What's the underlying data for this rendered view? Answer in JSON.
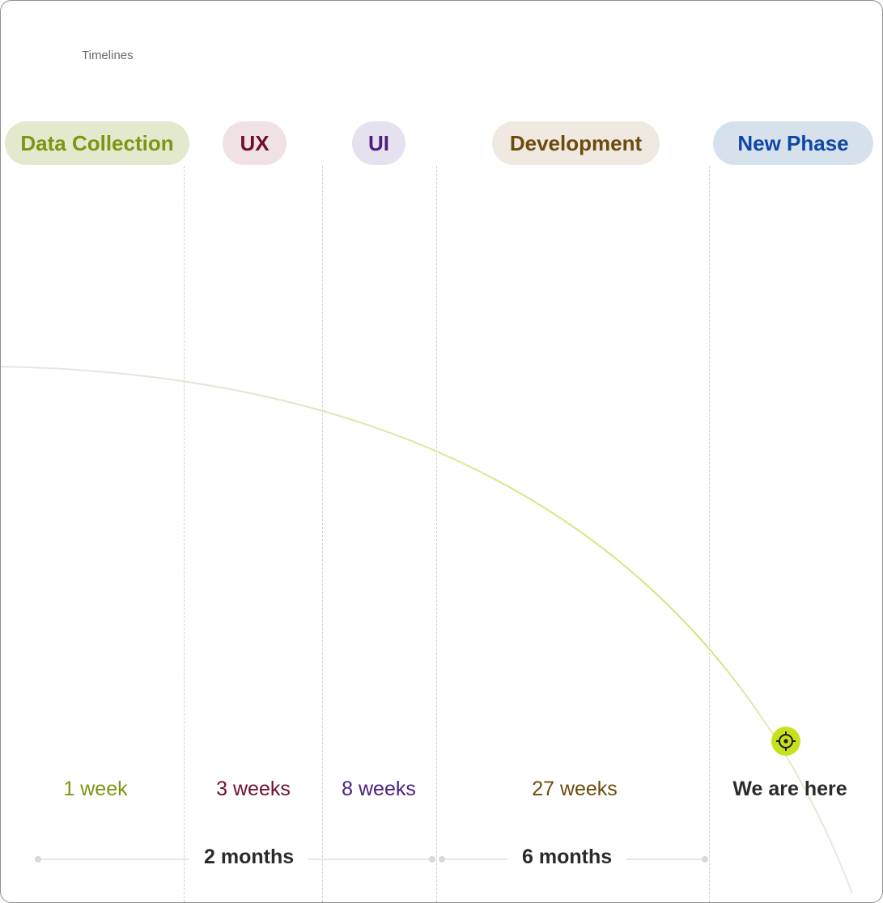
{
  "title": "Timelines",
  "phases": [
    {
      "label": "Data Collection",
      "duration": "1 week",
      "text_color": "#7e9413",
      "pill_color": "#e3e9cd"
    },
    {
      "label": "UX",
      "duration": "3 weeks",
      "text_color": "#6f0f2f",
      "pill_color": "#f0e1e4"
    },
    {
      "label": "UI",
      "duration": "8 weeks",
      "text_color": "#4a1f7e",
      "pill_color": "#e6e1ef"
    },
    {
      "label": "Development",
      "duration": "27 weeks",
      "text_color": "#6e4a0c",
      "pill_color": "#efe9e1"
    },
    {
      "label": "New Phase",
      "duration": "",
      "text_color": "#0f47a6",
      "pill_color": "#d7e1ec"
    }
  ],
  "current_marker": {
    "label": "We are here",
    "icon": "target-icon",
    "color": "#c7e21c"
  },
  "summaries": [
    "2 months",
    "6 months"
  ]
}
